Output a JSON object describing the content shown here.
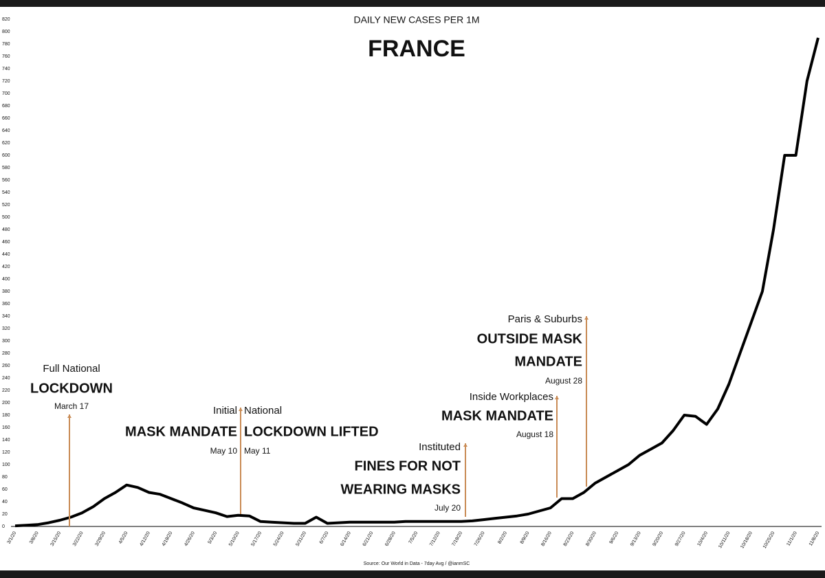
{
  "chart_data": {
    "type": "line",
    "title": "DAILY NEW CASES PER 1M",
    "subtitle": "FRANCE",
    "source": "Source: Our World in Data - 7day Avg / @ianmSC",
    "color": "#000000",
    "annotation_color": "#c98b55",
    "categories": [
      "3/1/20",
      null,
      "3/8/20",
      null,
      "3/15/20",
      null,
      "3/22/20",
      null,
      "3/29/20",
      null,
      "4/5/20",
      null,
      "4/12/20",
      null,
      "4/19/20",
      null,
      "4/26/20",
      null,
      "5/3/20",
      null,
      "5/10/20",
      null,
      "5/17/20",
      null,
      "5/24/20",
      null,
      "5/31/20",
      null,
      "6/7/20",
      null,
      "6/14/20",
      null,
      "6/21/20",
      null,
      "6/28/20",
      null,
      "7/5/20",
      null,
      "7/12/20",
      null,
      "7/19/20",
      null,
      "7/26/20",
      null,
      "8/2/20",
      null,
      "8/9/20",
      null,
      "8/16/20",
      null,
      "8/23/20",
      null,
      "8/30/20",
      null,
      "9/6/20",
      null,
      "9/13/20",
      null,
      "9/20/20",
      null,
      "9/27/20",
      null,
      "10/4/20",
      null,
      "10/11/20",
      null,
      "10/18/20",
      null,
      "10/25/20",
      null,
      "11/1/20",
      null,
      "11/8/20"
    ],
    "values": [
      1,
      2,
      3,
      6,
      10,
      15,
      22,
      32,
      45,
      55,
      67,
      63,
      55,
      52,
      45,
      38,
      30,
      26,
      22,
      16,
      18,
      17,
      8,
      7,
      6,
      5,
      5,
      15,
      5,
      6,
      7,
      7,
      7,
      7,
      7,
      8,
      8,
      8,
      8,
      8,
      8,
      9,
      11,
      13,
      15,
      17,
      20,
      25,
      30,
      45,
      45,
      55,
      70,
      80,
      90,
      100,
      115,
      125,
      135,
      155,
      180,
      178,
      165,
      190,
      230,
      280,
      330,
      380,
      480,
      600,
      600,
      720,
      790
    ],
    "ylim": [
      0,
      820
    ],
    "yticks": [
      0,
      20,
      40,
      60,
      80,
      100,
      120,
      140,
      160,
      180,
      200,
      220,
      240,
      260,
      280,
      300,
      320,
      340,
      360,
      380,
      400,
      420,
      440,
      460,
      480,
      500,
      520,
      540,
      560,
      580,
      600,
      620,
      640,
      660,
      680,
      700,
      720,
      740,
      760,
      780,
      800,
      820
    ],
    "annotations": [
      {
        "top": "Full National",
        "headline": [
          "LOCKDOWN"
        ],
        "date": "March 17"
      },
      {
        "top": "Initial",
        "headline": [
          "MASK MANDATE"
        ],
        "date": "May 10"
      },
      {
        "top": "National",
        "headline": [
          "LOCKDOWN LIFTED"
        ],
        "date": "May 11"
      },
      {
        "top": "Instituted",
        "headline": [
          "FINES FOR NOT",
          "WEARING MASKS"
        ],
        "date": "July 20"
      },
      {
        "top": "Inside Workplaces",
        "headline": [
          "MASK MANDATE"
        ],
        "date": "August 18"
      },
      {
        "top": "Paris & Suburbs",
        "headline": [
          "OUTSIDE MASK",
          "MANDATE"
        ],
        "date": "August 28"
      }
    ]
  }
}
